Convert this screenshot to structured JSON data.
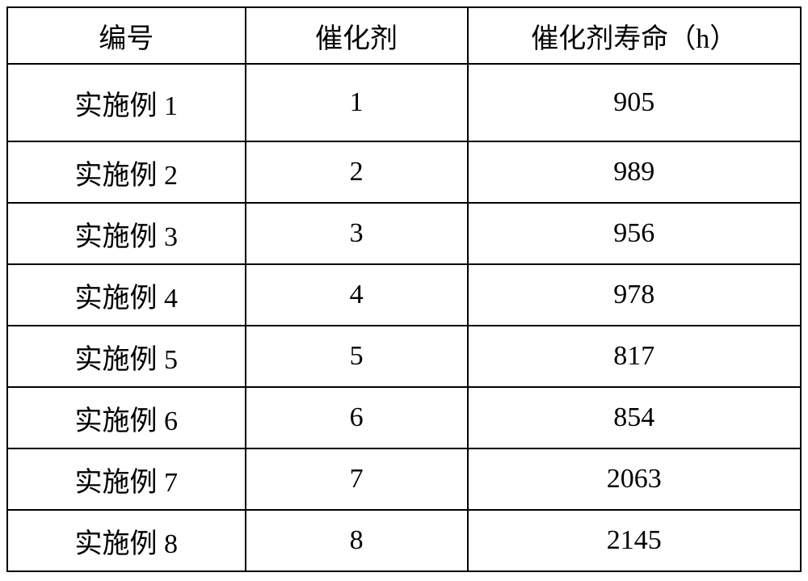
{
  "table": {
    "columns": [
      "编号",
      "催化剂",
      "催化剂寿命（h）"
    ],
    "rows": [
      [
        "实施例 1",
        "1",
        "905"
      ],
      [
        "实施例 2",
        "2",
        "989"
      ],
      [
        "实施例 3",
        "3",
        "956"
      ],
      [
        "实施例 4",
        "4",
        "978"
      ],
      [
        "实施例 5",
        "5",
        "817"
      ],
      [
        "实施例 6",
        "6",
        "854"
      ],
      [
        "实施例 7",
        "7",
        "2063"
      ],
      [
        "实施例 8",
        "8",
        "2145"
      ]
    ],
    "column_widths": [
      "30%",
      "28%",
      "42%"
    ],
    "header_row_height": 70,
    "first_body_row_height": 96,
    "body_row_height": 76,
    "border_color": "#000000",
    "border_width": 2,
    "background_color": "#ffffff",
    "text_color": "#000000",
    "font_size": 34,
    "font_family": "SimSun"
  }
}
